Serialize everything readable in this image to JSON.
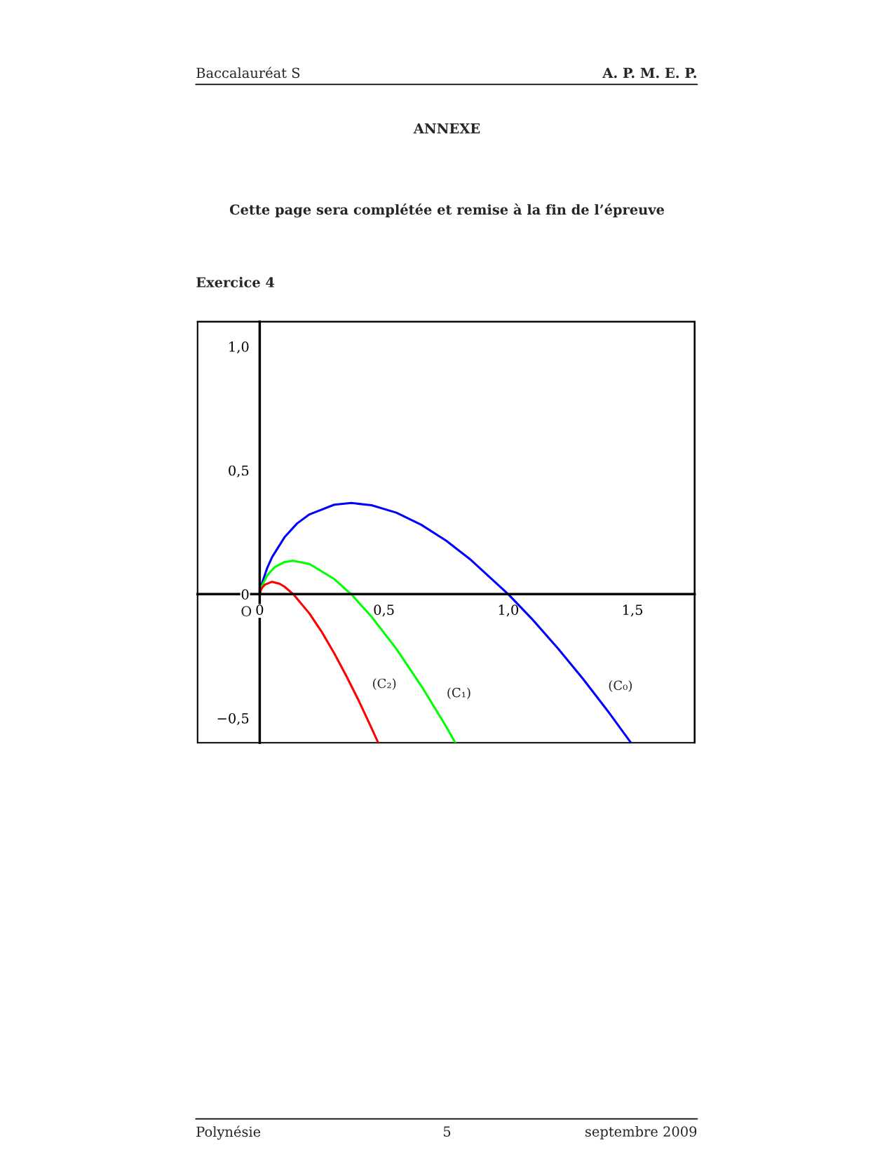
{
  "chart_data": {
    "type": "line",
    "title": "ANNEXE",
    "subtitle": "Cette page sera complétée et remise à la fin de l’épreuve",
    "annotations": [
      "Baccalauréat S",
      "A. P. M. E. P.",
      "Exercice 4",
      "Polynésie",
      "5",
      "septembre 2009",
      {
        "text": "O",
        "x": 0,
        "y": 0
      }
    ],
    "xlim": [
      -0.25,
      1.75
    ],
    "ylim": [
      -0.6,
      1.1
    ],
    "xticks": [
      0,
      {
        "value": 0.5,
        "label": "0,5"
      },
      {
        "value": 1.0,
        "label": "1,0"
      },
      {
        "value": 1.5,
        "label": "1,5"
      }
    ],
    "yticks": [
      {
        "value": -0.5,
        "label": "−0,5"
      },
      0,
      {
        "value": 0.5,
        "label": "0,5"
      },
      {
        "value": 1.0,
        "label": "1,0"
      }
    ],
    "grid": false,
    "legend": false,
    "marker": "none",
    "line_style": "solid",
    "series": [
      {
        "name": "(C₀)",
        "color": "#0000ff",
        "x": [
          0,
          0.01,
          0.03,
          0.05,
          0.1,
          0.15,
          0.2,
          0.3,
          0.368,
          0.45,
          0.55,
          0.65,
          0.75,
          0.85,
          1.0,
          1.1,
          1.2,
          1.3,
          1.4,
          1.494
        ],
        "values": [
          0,
          0.046,
          0.105,
          0.15,
          0.23,
          0.285,
          0.322,
          0.361,
          0.368,
          0.359,
          0.329,
          0.28,
          0.216,
          0.138,
          0,
          -0.105,
          -0.219,
          -0.341,
          -0.471,
          -0.6
        ]
      },
      {
        "name": "(C₁)",
        "color": "#00ff00",
        "x": [
          0,
          0.005,
          0.01,
          0.03,
          0.06,
          0.1,
          0.135,
          0.2,
          0.3,
          0.368,
          0.45,
          0.55,
          0.65,
          0.75,
          0.787
        ],
        "values": [
          0,
          0.021,
          0.036,
          0.075,
          0.109,
          0.13,
          0.135,
          0.122,
          0.061,
          0,
          -0.091,
          -0.221,
          -0.37,
          -0.534,
          -0.6
        ]
      },
      {
        "name": "(C₂)",
        "color": "#ff0000",
        "x": [
          0,
          0.002,
          0.005,
          0.01,
          0.02,
          0.05,
          0.08,
          0.1,
          0.135,
          0.2,
          0.25,
          0.3,
          0.35,
          0.4,
          0.45,
          0.477
        ],
        "values": [
          0,
          0.008,
          0.017,
          0.026,
          0.038,
          0.05,
          0.042,
          0.03,
          0,
          -0.078,
          -0.153,
          -0.239,
          -0.333,
          -0.433,
          -0.541,
          -0.6
        ]
      }
    ]
  }
}
